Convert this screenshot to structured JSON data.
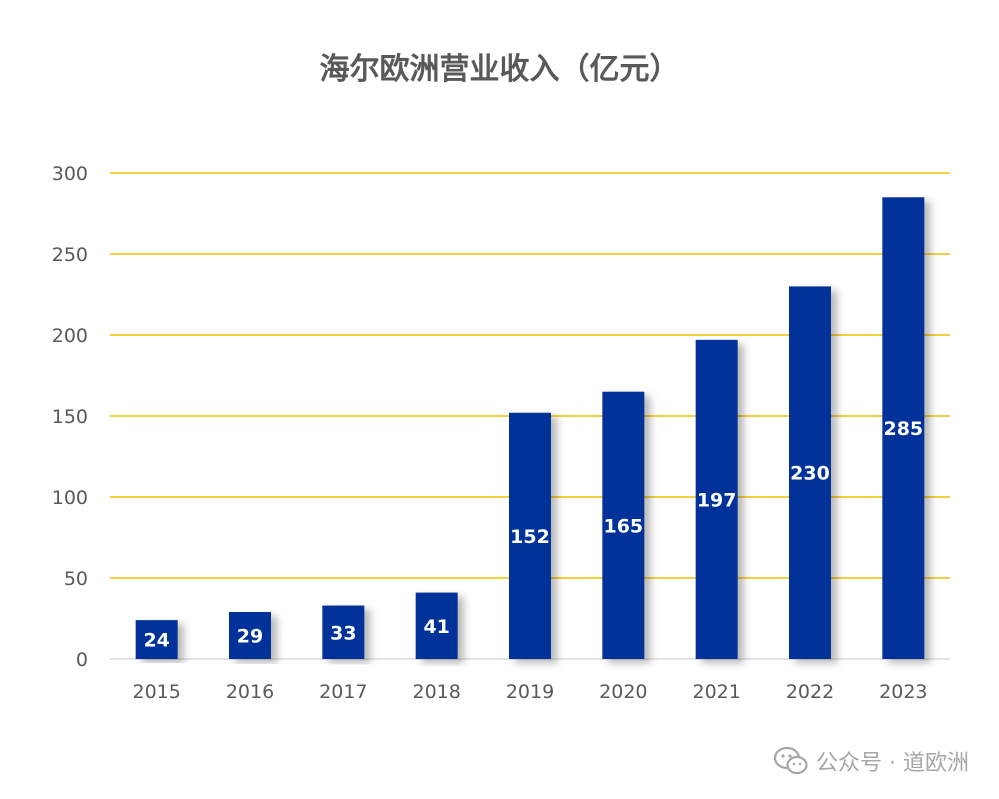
{
  "chart_data": {
    "type": "bar",
    "title": "海尔欧洲营业收入（亿元）",
    "categories": [
      "2015",
      "2016",
      "2017",
      "2018",
      "2019",
      "2020",
      "2021",
      "2022",
      "2023"
    ],
    "values": [
      24,
      29,
      33,
      41,
      152,
      165,
      197,
      230,
      285
    ],
    "ylim": [
      0,
      300
    ],
    "yticks": [
      0,
      50,
      100,
      150,
      200,
      250,
      300
    ],
    "grid": true,
    "legend": "none",
    "colors": {
      "bar": "#003399",
      "grid": "#F2C200",
      "label": "#ffffff",
      "axis_text": "#595959"
    }
  },
  "watermark": {
    "icon": "wechat-icon",
    "text": "公众号 · 道欧洲"
  }
}
